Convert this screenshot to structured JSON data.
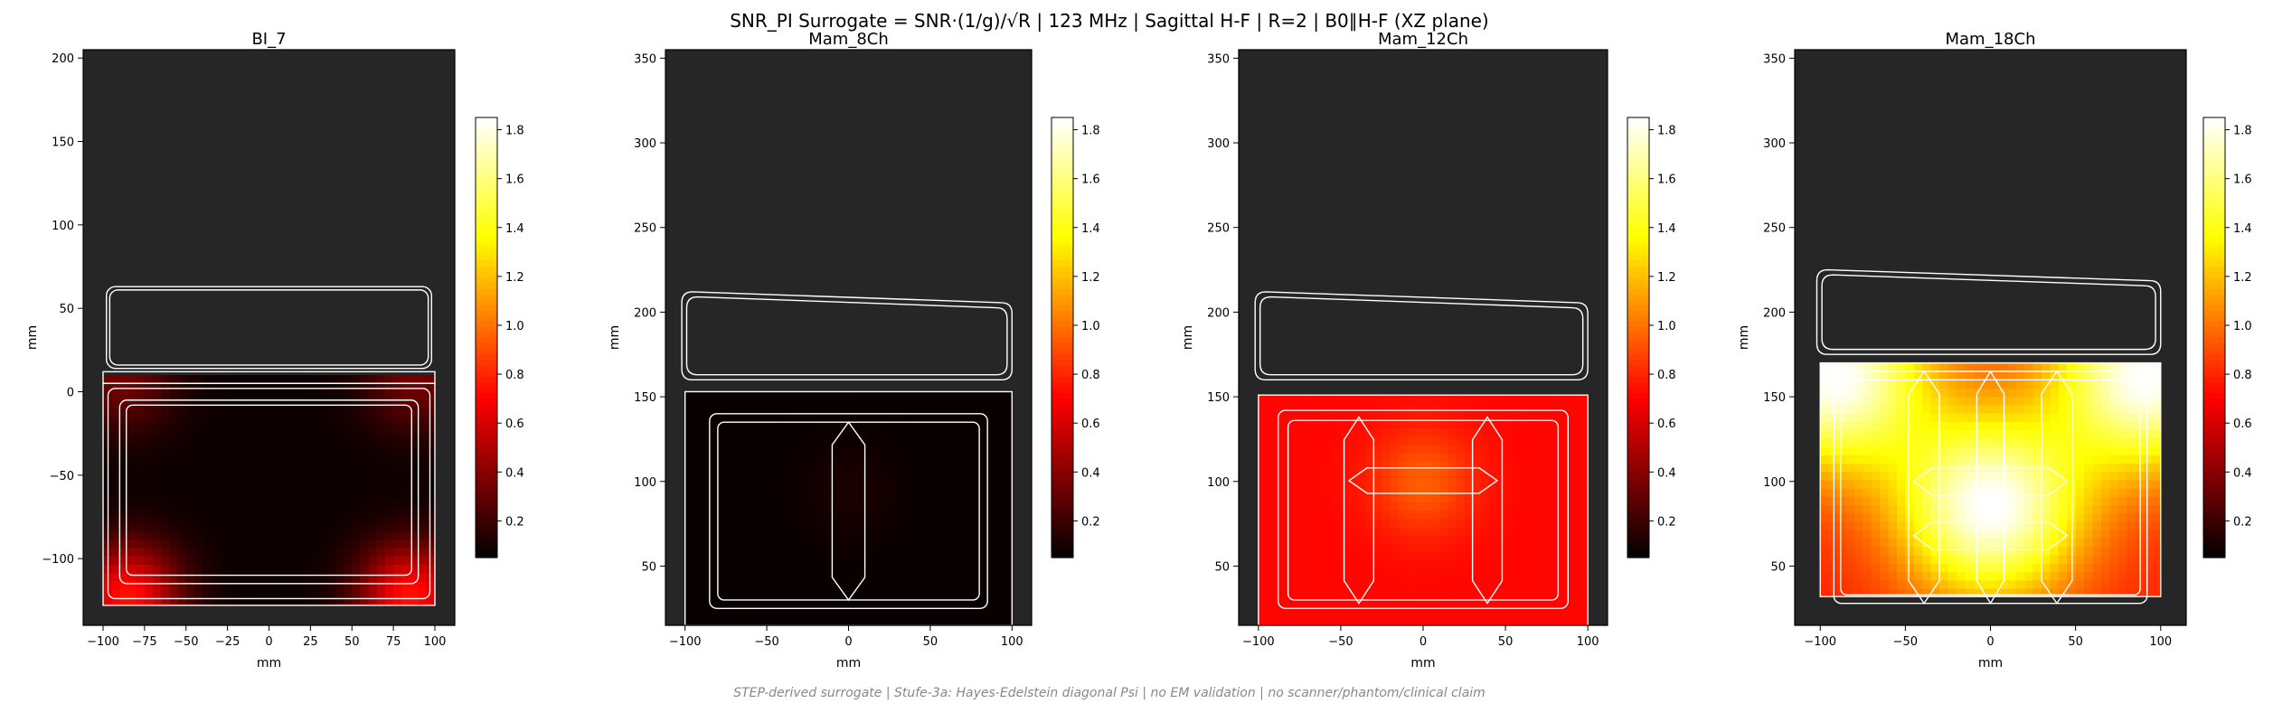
{
  "figure": {
    "suptitle": "SNR_PI Surrogate = SNR·(1/g)/√R | 123 MHz | Sagittal H-F | R=2 | B0∥H-F (XZ plane)",
    "footer": "STEP-derived surrogate | Stufe-3a: Hayes-Edelstein diagonal Psi | no EM validation | no scanner/phantom/clinical claim",
    "colors": {
      "background": "#262626",
      "coil": "#ffffff",
      "colormap": "hot"
    }
  },
  "chart_data": [
    {
      "type": "heatmap",
      "title": "BI_7",
      "xlabel": "mm",
      "ylabel": "mm",
      "xlim": [
        -112,
        112
      ],
      "ylim": [
        -140,
        205
      ],
      "xticks": [
        -100,
        -75,
        -50,
        -25,
        0,
        25,
        50,
        75,
        100
      ],
      "yticks": [
        -100,
        -50,
        0,
        50,
        100,
        150,
        200
      ],
      "colorbar": {
        "min": 0.05,
        "max": 1.85,
        "ticks": [
          0.2,
          0.4,
          0.6,
          0.8,
          1.0,
          1.2,
          1.4,
          1.6,
          1.8
        ]
      },
      "field_extent": {
        "x": [
          -100,
          100
        ],
        "y": [
          -128,
          10
        ]
      },
      "base_level": 0.08,
      "hotspots": [
        {
          "x": -85,
          "y": -122,
          "value": 0.75
        },
        {
          "x": 85,
          "y": -122,
          "value": 0.75
        },
        {
          "x": -88,
          "y": 8,
          "value": 0.35
        },
        {
          "x": 88,
          "y": 8,
          "value": 0.35
        }
      ]
    },
    {
      "type": "heatmap",
      "title": "Mam_8Ch",
      "xlabel": "mm",
      "ylabel": "mm",
      "xlim": [
        -112,
        112
      ],
      "ylim": [
        15,
        355
      ],
      "xticks": [
        -100,
        -50,
        0,
        50,
        100
      ],
      "yticks": [
        50,
        100,
        150,
        200,
        250,
        300,
        350
      ],
      "colorbar": {
        "min": 0.05,
        "max": 1.85,
        "ticks": [
          0.2,
          0.4,
          0.6,
          0.8,
          1.0,
          1.2,
          1.4,
          1.6,
          1.8
        ]
      },
      "field_extent": {
        "x": [
          -100,
          100
        ],
        "y": [
          15,
          153
        ]
      },
      "base_level": 0.07,
      "hotspots": [
        {
          "x": 0,
          "y": 95,
          "value": 0.12
        }
      ]
    },
    {
      "type": "heatmap",
      "title": "Mam_12Ch",
      "xlabel": "mm",
      "ylabel": "mm",
      "xlim": [
        -112,
        112
      ],
      "ylim": [
        15,
        355
      ],
      "xticks": [
        -100,
        -50,
        0,
        50,
        100
      ],
      "yticks": [
        50,
        100,
        150,
        200,
        250,
        300,
        350
      ],
      "colorbar": {
        "min": 0.05,
        "max": 1.85,
        "ticks": [
          0.2,
          0.4,
          0.6,
          0.8,
          1.0,
          1.2,
          1.4,
          1.6,
          1.8
        ]
      },
      "field_extent": {
        "x": [
          -100,
          100
        ],
        "y": [
          15,
          151
        ]
      },
      "base_level": 0.72,
      "hotspots": [
        {
          "x": 0,
          "y": 100,
          "value": 0.95
        }
      ]
    },
    {
      "type": "heatmap",
      "title": "Mam_18Ch",
      "xlabel": "mm",
      "ylabel": "mm",
      "xlim": [
        -115,
        115
      ],
      "ylim": [
        15,
        355
      ],
      "xticks": [
        -100,
        -50,
        0,
        50,
        100
      ],
      "yticks": [
        50,
        100,
        150,
        200,
        250,
        300,
        350
      ],
      "colorbar": {
        "min": 0.05,
        "max": 1.85,
        "ticks": [
          0.2,
          0.4,
          0.6,
          0.8,
          1.0,
          1.2,
          1.4,
          1.6,
          1.8
        ]
      },
      "field_extent": {
        "x": [
          -100,
          100
        ],
        "y": [
          32,
          170
        ]
      },
      "base_level": 0.8,
      "hotspots": [
        {
          "x": 0,
          "y": 85,
          "value": 1.85
        },
        {
          "x": -92,
          "y": 162,
          "value": 1.85
        },
        {
          "x": 92,
          "y": 162,
          "value": 1.85
        }
      ]
    }
  ]
}
